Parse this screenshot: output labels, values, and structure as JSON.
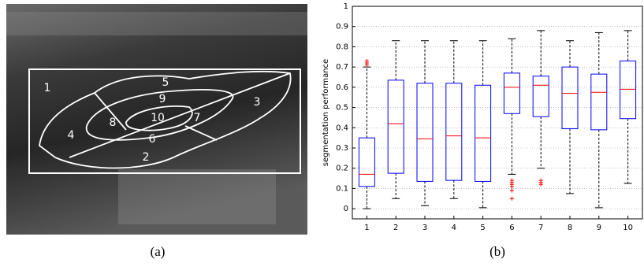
{
  "figure_a": {
    "region_labels": [
      "1",
      "2",
      "3",
      "4",
      "5",
      "6",
      "7",
      "8",
      "9",
      "10"
    ],
    "caption": "(a)"
  },
  "figure_b_caption": "(b)",
  "chart_data": {
    "type": "box",
    "y_label": "segmentation performance",
    "categories": [
      "1",
      "2",
      "3",
      "4",
      "5",
      "6",
      "7",
      "8",
      "9",
      "10"
    ],
    "whisker_low": [
      0,
      0.05,
      0.015,
      0.05,
      0.005,
      0.17,
      0.2,
      0.075,
      0.005,
      0.125
    ],
    "q1": [
      0.11,
      0.175,
      0.135,
      0.14,
      0.135,
      0.47,
      0.455,
      0.395,
      0.39,
      0.445
    ],
    "median": [
      0.17,
      0.42,
      0.345,
      0.36,
      0.35,
      0.6,
      0.61,
      0.57,
      0.575,
      0.59
    ],
    "q3": [
      0.35,
      0.635,
      0.62,
      0.62,
      0.61,
      0.67,
      0.655,
      0.7,
      0.665,
      0.73
    ],
    "whisker_high": [
      0.7,
      0.83,
      0.83,
      0.83,
      0.83,
      0.84,
      0.88,
      0.83,
      0.87,
      0.88
    ],
    "outliers": [
      [
        0.71,
        0.72,
        0.73
      ],
      [],
      [],
      [],
      [],
      [
        0.05,
        0.09,
        0.11,
        0.12,
        0.13,
        0.14
      ],
      [
        0.12,
        0.13,
        0.14
      ],
      [],
      [],
      []
    ],
    "box_color": "#0000ff",
    "median_color": "#ff0000",
    "outlier_color": "#ff0000",
    "ylim": [
      -0.05,
      1
    ],
    "yticks": [
      0,
      0.1,
      0.2,
      0.3,
      0.4,
      0.5,
      0.6,
      0.7,
      0.8,
      0.9,
      1
    ],
    "grid": true
  }
}
